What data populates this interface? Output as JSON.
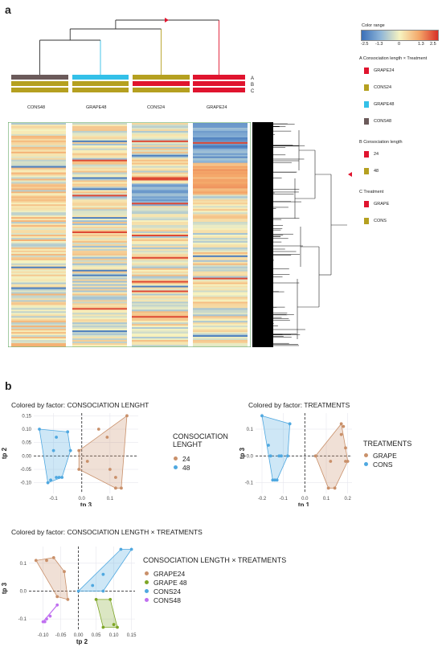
{
  "panel_a": {
    "label": "a",
    "heatmap": {
      "columns": [
        "CONS48",
        "GRAPE48",
        "CONS24",
        "GRAPE24"
      ],
      "annotation_rows": [
        "A",
        "B",
        "C"
      ],
      "annotation_colors": [
        [
          "#6b5a5a",
          "#b5a020",
          "#b5a020"
        ],
        [
          "#33c0e8",
          "#b5a020",
          "#b5a020"
        ],
        [
          "#b5a020",
          "#e0142e",
          "#b5a020"
        ],
        [
          "#e0142e",
          "#e0142e",
          "#e0142e"
        ]
      ]
    },
    "color_range": {
      "title": "Color range",
      "ticks": [
        "-2.5",
        "-1.3",
        "0",
        "1.3",
        "2.5"
      ],
      "low_color": "#3a6fb8",
      "mid_color": "#f7f3c0",
      "high_color": "#d73027"
    },
    "legend_groups": [
      {
        "key": "A",
        "title": "Consociation length × Treatment",
        "items": [
          {
            "label": "GRAPE24",
            "color": "#e0142e"
          },
          {
            "label": "CONS24",
            "color": "#b5a020"
          },
          {
            "label": "GRAPE48",
            "color": "#33c0e8"
          },
          {
            "label": "CONS48",
            "color": "#6b5a5a"
          }
        ]
      },
      {
        "key": "B",
        "title": "Consociation length",
        "items": [
          {
            "label": "24",
            "color": "#e0142e"
          },
          {
            "label": "48",
            "color": "#b5a020"
          }
        ]
      },
      {
        "key": "C",
        "title": "Treatment",
        "items": [
          {
            "label": "GRAPE",
            "color": "#e0142e"
          },
          {
            "label": "CONS",
            "color": "#b5a020"
          }
        ]
      }
    ]
  },
  "panel_b": {
    "label": "b",
    "colors": {
      "a": "#c9906a",
      "b": "#4fa8e0",
      "grape48": "#7ea626",
      "cons48": "#c070f0"
    }
  },
  "chart_data": [
    {
      "type": "scatter",
      "title": "Colored by factor: CONSOCIATION LENGHT",
      "xlabel": "tp 3",
      "ylabel": "tp 2",
      "xlim": [
        -0.17,
        0.2
      ],
      "ylim": [
        -0.14,
        0.16
      ],
      "xticks": [
        -0.1,
        0.0,
        0.1
      ],
      "yticks": [
        0.15,
        0.1,
        0.05,
        0.0,
        -0.05,
        -0.1
      ],
      "grid": true,
      "legend_title": "CONSOCIATION LENGHT",
      "series": [
        {
          "name": "24",
          "color": "#c9906a",
          "hull": [
            [
              -0.01,
              0.02
            ],
            [
              0.16,
              0.15
            ],
            [
              0.14,
              -0.12
            ],
            [
              0.12,
              -0.12
            ],
            [
              -0.01,
              -0.05
            ]
          ],
          "points": [
            [
              -0.01,
              0.02
            ],
            [
              -0.01,
              -0.05
            ],
            [
              0.02,
              -0.02
            ],
            [
              0.06,
              0.1
            ],
            [
              0.09,
              0.07
            ],
            [
              0.1,
              -0.05
            ],
            [
              0.12,
              -0.08
            ],
            [
              0.14,
              -0.12
            ],
            [
              0.16,
              0.15
            ],
            [
              0.12,
              -0.12
            ]
          ]
        },
        {
          "name": "48",
          "color": "#4fa8e0",
          "hull": [
            [
              -0.15,
              0.1
            ],
            [
              -0.05,
              0.09
            ],
            [
              -0.04,
              0.02
            ],
            [
              -0.07,
              -0.08
            ],
            [
              -0.12,
              -0.1
            ]
          ],
          "points": [
            [
              -0.15,
              0.1
            ],
            [
              -0.09,
              0.07
            ],
            [
              -0.05,
              0.09
            ],
            [
              -0.04,
              0.02
            ],
            [
              -0.07,
              -0.08
            ],
            [
              -0.08,
              -0.08
            ],
            [
              -0.11,
              -0.09
            ],
            [
              -0.12,
              -0.1
            ],
            [
              -0.1,
              0.02
            ],
            [
              -0.09,
              -0.08
            ]
          ]
        }
      ]
    },
    {
      "type": "scatter",
      "title": "Colored by factor: TREATMENTS",
      "xlabel": "tp 1",
      "ylabel": "tp 3",
      "xlim": [
        -0.23,
        0.22
      ],
      "ylim": [
        -0.14,
        0.16
      ],
      "xticks": [
        -0.2,
        -0.1,
        0.0,
        0.1,
        0.2
      ],
      "yticks": [
        0.1,
        0.0,
        -0.1
      ],
      "grid": true,
      "legend_title": "TREATMENTS",
      "series": [
        {
          "name": "GRAPE",
          "color": "#c9906a",
          "hull": [
            [
              0.05,
              0.0
            ],
            [
              0.17,
              0.12
            ],
            [
              0.19,
              0.03
            ],
            [
              0.2,
              -0.02
            ],
            [
              0.14,
              -0.12
            ],
            [
              0.11,
              -0.12
            ]
          ],
          "points": [
            [
              0.05,
              0.0
            ],
            [
              0.17,
              0.12
            ],
            [
              0.17,
              0.08
            ],
            [
              0.18,
              0.11
            ],
            [
              0.19,
              0.03
            ],
            [
              0.2,
              -0.02
            ],
            [
              0.19,
              -0.02
            ],
            [
              0.14,
              -0.12
            ],
            [
              0.11,
              -0.12
            ],
            [
              0.12,
              -0.02
            ]
          ]
        },
        {
          "name": "CONS",
          "color": "#4fa8e0",
          "hull": [
            [
              -0.2,
              0.15
            ],
            [
              -0.07,
              0.12
            ],
            [
              -0.08,
              0.0
            ],
            [
              -0.13,
              -0.09
            ],
            [
              -0.15,
              -0.09
            ]
          ],
          "points": [
            [
              -0.2,
              0.15
            ],
            [
              -0.07,
              0.12
            ],
            [
              -0.08,
              0.0
            ],
            [
              -0.12,
              0.0
            ],
            [
              -0.13,
              -0.09
            ],
            [
              -0.15,
              -0.09
            ],
            [
              -0.17,
              0.04
            ],
            [
              -0.16,
              0.0
            ],
            [
              -0.11,
              0.0
            ],
            [
              -0.14,
              -0.09
            ]
          ]
        }
      ]
    },
    {
      "type": "scatter",
      "title": "Colored by factor: CONSOCIATION LENGTH × TREATMENTS",
      "xlabel": "tp 2",
      "ylabel": "tp 3",
      "xlim": [
        -0.14,
        0.16
      ],
      "ylim": [
        -0.14,
        0.16
      ],
      "xticks": [
        -0.1,
        -0.05,
        0.0,
        0.05,
        0.1,
        0.15
      ],
      "yticks": [
        0.1,
        0.0,
        -0.1
      ],
      "grid": true,
      "legend_title": "CONSOCIATION LENGTH × TREATMENTS",
      "series": [
        {
          "name": "GRAPE24",
          "color": "#c9906a",
          "hull": [
            [
              -0.12,
              0.11
            ],
            [
              -0.07,
              0.12
            ],
            [
              -0.04,
              0.07
            ],
            [
              -0.03,
              -0.03
            ],
            [
              -0.06,
              -0.02
            ]
          ],
          "points": [
            [
              -0.12,
              0.11
            ],
            [
              -0.07,
              0.12
            ],
            [
              -0.09,
              0.11
            ],
            [
              -0.04,
              0.07
            ],
            [
              -0.03,
              -0.03
            ],
            [
              -0.06,
              -0.02
            ]
          ]
        },
        {
          "name": "GRAPE 48",
          "color": "#7ea626",
          "hull": [
            [
              0.05,
              -0.03
            ],
            [
              0.09,
              -0.03
            ],
            [
              0.11,
              -0.13
            ],
            [
              0.07,
              -0.13
            ]
          ],
          "points": [
            [
              0.05,
              -0.03
            ],
            [
              0.09,
              -0.03
            ],
            [
              0.11,
              -0.13
            ],
            [
              0.07,
              -0.13
            ],
            [
              0.1,
              -0.12
            ]
          ]
        },
        {
          "name": "CONS24",
          "color": "#4fa8e0",
          "hull": [
            [
              0.0,
              0.0
            ],
            [
              0.12,
              0.15
            ],
            [
              0.15,
              0.15
            ],
            [
              0.07,
              0.0
            ]
          ],
          "points": [
            [
              0.0,
              0.0
            ],
            [
              0.04,
              0.02
            ],
            [
              0.07,
              0.0
            ],
            [
              0.07,
              0.06
            ],
            [
              0.12,
              0.15
            ],
            [
              0.15,
              0.15
            ]
          ]
        },
        {
          "name": "CONS48",
          "color": "#c070f0",
          "hull": [
            [
              -0.1,
              -0.11
            ],
            [
              -0.06,
              -0.05
            ]
          ],
          "points": [
            [
              -0.1,
              -0.11
            ],
            [
              -0.09,
              -0.1
            ],
            [
              -0.08,
              -0.09
            ],
            [
              -0.06,
              -0.05
            ],
            [
              -0.095,
              -0.11
            ]
          ]
        }
      ]
    }
  ]
}
